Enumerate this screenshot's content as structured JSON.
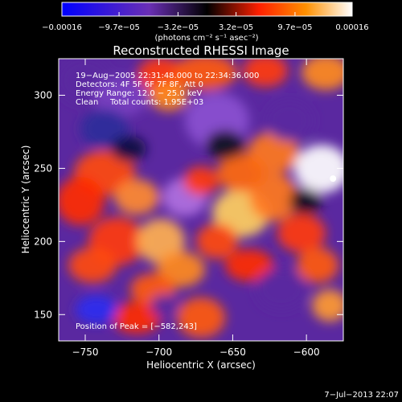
{
  "chart_data": {
    "type": "heatmap",
    "title": "Reconstructed RHESSI Image",
    "xlabel": "Heliocentric X (arcsec)",
    "ylabel": "Heliocentric Y (arcsec)",
    "xlim": [
      -768,
      -575
    ],
    "ylim": [
      132,
      325
    ],
    "x_ticks": [
      -750,
      -700,
      -650,
      -600
    ],
    "y_ticks": [
      150,
      200,
      250,
      300
    ],
    "x_tick_labels": [
      "−750",
      "−700",
      "−650",
      "−600"
    ],
    "y_tick_labels": [
      "150",
      "200",
      "250",
      "300"
    ],
    "grid": false,
    "colorbar": {
      "range": [
        -0.00016,
        0.00016
      ],
      "ticks": [
        -0.00016,
        -9.7e-05,
        -3.2e-05,
        3.2e-05,
        9.7e-05,
        0.00016
      ],
      "tick_labels": [
        "−0.00016",
        "−9.7e−05",
        "−3.2e−05",
        "3.2e−05",
        "9.7e−05",
        "0.00016"
      ],
      "unit_label": "(photons cm⁻² s⁻¹ asec⁻²)",
      "colors": [
        "#0000ff",
        "#6a2fb5",
        "#000000",
        "#ff2000",
        "#ff9000",
        "#ffffff"
      ]
    },
    "annotations": {
      "time_range": "19−Aug−2005 22:31:48.000 to 22:34:36.000",
      "detectors": "Detectors: 4F 5F 6F 7F 8F, Att 0",
      "energy": "Energy Range: 12.0 − 25.0 keV",
      "clean_label": "Clean",
      "total_counts": "Total counts: 1.95E+03",
      "peak": "Position of Peak = [−582,243]"
    },
    "peak_position": [
      -582,
      243
    ],
    "footer_date": "7−Jul−2013 22:07"
  }
}
